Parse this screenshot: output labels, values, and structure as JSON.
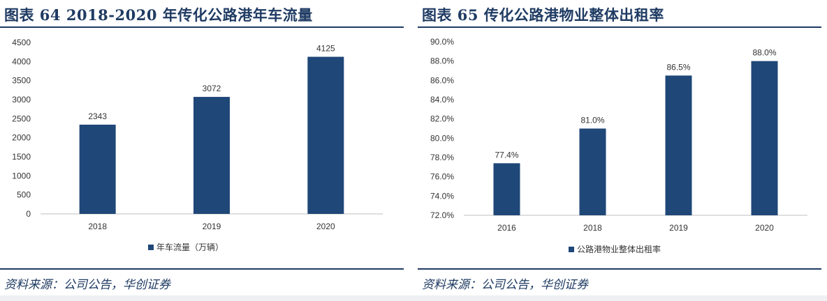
{
  "colors": {
    "bar": "#1f4778",
    "title": "#1f3b63",
    "axis": "#bfbfbf",
    "tick_text": "#333333"
  },
  "left": {
    "title": "图表 64   2018-2020 年传化公路港年车流量",
    "source": "资料来源：公司公告，华创证券",
    "chart_data": {
      "type": "bar",
      "categories": [
        "2018",
        "2019",
        "2020"
      ],
      "series": [
        {
          "name": "年车流量（万辆）",
          "values": [
            2343,
            3072,
            4125
          ]
        }
      ],
      "data_labels": [
        "2343",
        "3072",
        "4125"
      ],
      "yticks": [
        "0",
        "500",
        "1000",
        "1500",
        "2000",
        "2500",
        "3000",
        "3500",
        "4000",
        "4500"
      ],
      "ylim": [
        0,
        4500
      ],
      "title": "",
      "xlabel": "",
      "ylabel": "",
      "legend": "bottom",
      "grid": false
    }
  },
  "right": {
    "title": "图表 65   传化公路港物业整体出租率",
    "source": "资料来源：公司公告，华创证券",
    "chart_data": {
      "type": "bar",
      "categories": [
        "2016",
        "2018",
        "2019",
        "2020"
      ],
      "series": [
        {
          "name": "公路港物业整体出租率",
          "values": [
            77.4,
            81.0,
            86.5,
            88.0
          ]
        }
      ],
      "data_labels": [
        "77.4%",
        "81.0%",
        "86.5%",
        "88.0%"
      ],
      "yticks": [
        "72.0%",
        "74.0%",
        "76.0%",
        "78.0%",
        "80.0%",
        "82.0%",
        "84.0%",
        "86.0%",
        "88.0%",
        "90.0%"
      ],
      "ylim": [
        72,
        90
      ],
      "title": "",
      "xlabel": "",
      "ylabel": "",
      "legend": "bottom",
      "grid": false
    }
  }
}
